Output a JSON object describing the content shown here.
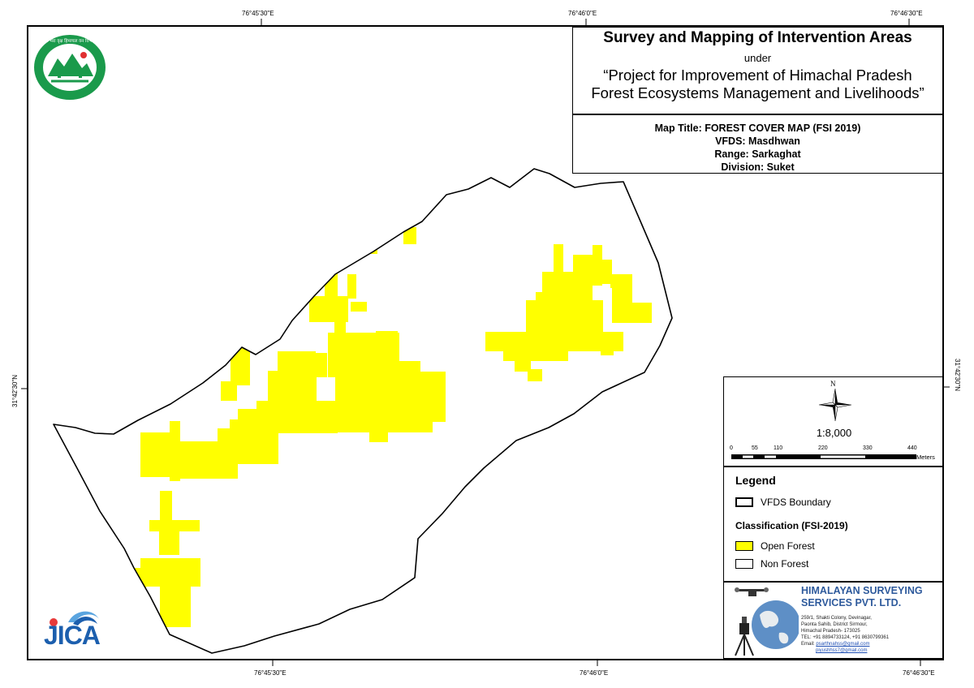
{
  "coords": {
    "top": [
      "76°45'30\"E",
      "76°46'0\"E",
      "76°46'30\"E"
    ],
    "bottom": [
      "76°45'30\"E",
      "76°46'0\"E",
      "76°46'30\"E"
    ],
    "left": "31°42'30\"N",
    "right": "31°42'30\"N"
  },
  "title": {
    "main": "Survey and Mapping of Intervention Areas",
    "under": "under",
    "project_line1": "“Project for Improvement of Himachal Pradesh",
    "project_line2": "Forest Ecosystems Management and Livelihoods”"
  },
  "map_info": {
    "map_title": "Map Title: FOREST COVER MAP (FSI 2019)",
    "vfds": "VFDS: Masdhwan",
    "range": "Range: Sarkaghat",
    "division": "Division: Suket"
  },
  "north_arrow": {
    "label": "N"
  },
  "scale": {
    "ratio": "1:8,000",
    "ticks": [
      "0",
      "55",
      "110",
      "220",
      "330",
      "440"
    ],
    "unit": "Meters"
  },
  "legend": {
    "title": "Legend",
    "boundary_label": "VFDS Boundary",
    "classification_title": "Classification (FSI-2019)",
    "items": [
      {
        "label": "Open Forest",
        "color": "#ffff00"
      },
      {
        "label": "Non Forest",
        "color": "#ffffff"
      }
    ]
  },
  "company": {
    "name_line1": "HIMALAYAN SURVEYING",
    "name_line2": "SERVICES PVT. LTD.",
    "address": [
      "259/1, Shakti Colony, Devinagar,",
      "Paonta Sahib, District Sirmour,",
      "Himachal Pradesh- 173025",
      "TEL: +91 8894733124, +91 8630799361"
    ],
    "email_label": "Email:",
    "email1": "psarthnahss@gmail.com",
    "email2": "piyushhss7@gmail.com"
  },
  "logos": {
    "forest_dept": "forest-department-seal",
    "forest_dept_text": "हर भरा वृक्ष हिमाचल वन विभाग",
    "jica": "JICA"
  },
  "colors": {
    "open_forest": "#ffff00",
    "boundary": "#000000",
    "company_blue": "#2e5a9c",
    "seal_green": "#1a9a4b",
    "jica_blue": "#1c5fae",
    "jica_red": "#e83a3a"
  }
}
